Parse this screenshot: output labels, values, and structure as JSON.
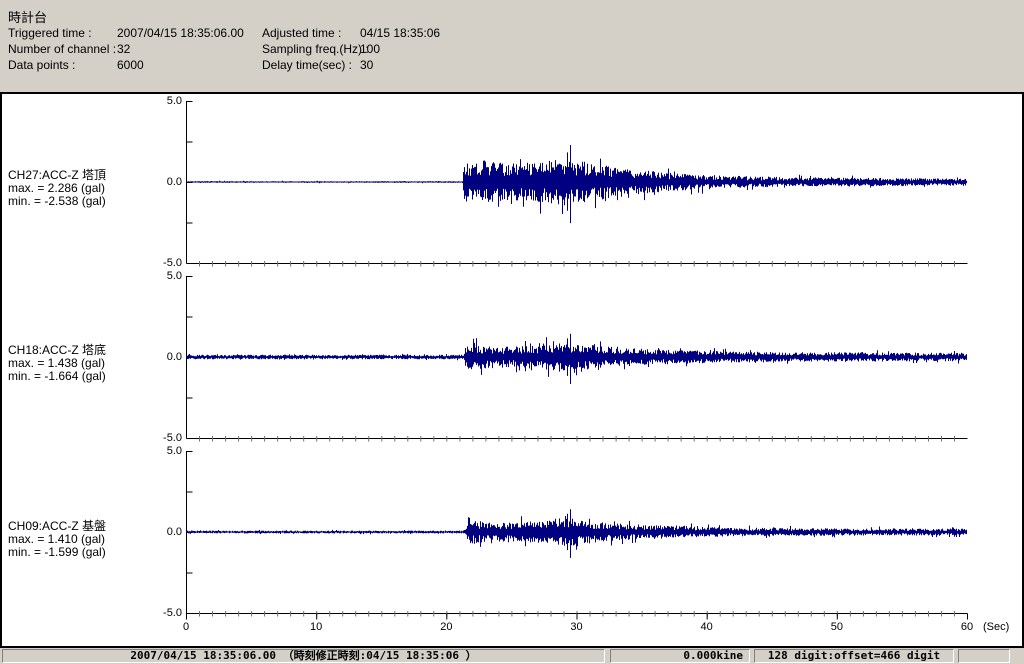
{
  "header": {
    "title": "時計台",
    "fields": [
      {
        "label": "Triggered time :",
        "value": "2007/04/15 18:35:06.00"
      },
      {
        "label": "Adjusted time :",
        "value": "04/15 18:35:06"
      },
      {
        "label": "Number of channel :",
        "value": "32"
      },
      {
        "label": "Sampling freq.(Hz) :",
        "value": "100"
      },
      {
        "label": "Data points :",
        "value": "6000"
      },
      {
        "label": "Delay time(sec) :",
        "value": "30"
      }
    ]
  },
  "status_bar": {
    "timestamp": "2007/04/15 18:35:06.00  （時刻修正時刻:04/15 18:35:06  ）",
    "kine": "0.000kine",
    "digit": "128 digit:offset=466 digit"
  },
  "chart_data": {
    "type": "line",
    "title": "Triggered seismic acceleration waveforms, 3 channels",
    "xlabel": "(Sec)",
    "ylabel": "gal",
    "x_axis": {
      "min": 0,
      "max": 60,
      "major_tick": 10,
      "minor_tick": 1,
      "tick_labels": [
        "0",
        "10",
        "20",
        "30",
        "40",
        "50",
        "60"
      ],
      "label": "(Sec)"
    },
    "y_axis": {
      "min": -5.0,
      "max": 5.0,
      "tick_labels": [
        "5.0",
        "0.0",
        "-5.0"
      ],
      "unit": "gal"
    },
    "grid": false,
    "colors": {
      "trace": "#000080",
      "axis": "#000000",
      "minor_tick": "#707070"
    },
    "event": {
      "onset_sec": 21.3,
      "peak_sec": 29.5
    },
    "channels": [
      {
        "id": "CH27",
        "label": "CH27:ACC-Z 塔頂",
        "max_label": "max. = 2.286 (gal)",
        "min_label": "min. = -2.538 (gal)",
        "max": 2.286,
        "min": -2.538,
        "envelope": [
          [
            0,
            0.05
          ],
          [
            21.2,
            0.05
          ],
          [
            21.35,
            1.2
          ],
          [
            23,
            1.35
          ],
          [
            25,
            1.15
          ],
          [
            27,
            1.25
          ],
          [
            29,
            1.45
          ],
          [
            30,
            1.35
          ],
          [
            31.5,
            1.15
          ],
          [
            33,
            0.95
          ],
          [
            35,
            0.75
          ],
          [
            37,
            0.6
          ],
          [
            40,
            0.45
          ],
          [
            44,
            0.33
          ],
          [
            50,
            0.27
          ],
          [
            60,
            0.22
          ]
        ]
      },
      {
        "id": "CH18",
        "label": "CH18:ACC-Z 塔底",
        "max_label": "max. = 1.438 (gal)",
        "min_label": "min. = -1.664 (gal)",
        "max": 1.438,
        "min": -1.664,
        "envelope": [
          [
            0,
            0.14
          ],
          [
            21.3,
            0.14
          ],
          [
            21.5,
            0.8
          ],
          [
            23,
            0.7
          ],
          [
            25,
            0.65
          ],
          [
            27,
            0.75
          ],
          [
            29,
            0.95
          ],
          [
            30,
            0.85
          ],
          [
            31.5,
            0.7
          ],
          [
            33,
            0.6
          ],
          [
            35,
            0.52
          ],
          [
            38,
            0.42
          ],
          [
            42,
            0.34
          ],
          [
            47,
            0.3
          ],
          [
            60,
            0.26
          ]
        ]
      },
      {
        "id": "CH09",
        "label": "CH09:ACC-Z 基盤",
        "max_label": "max. = 1.410 (gal)",
        "min_label": "min. = -1.599 (gal)",
        "max": 1.41,
        "min": -1.599,
        "envelope": [
          [
            0,
            0.09
          ],
          [
            21.4,
            0.09
          ],
          [
            21.6,
            0.75
          ],
          [
            23,
            0.62
          ],
          [
            25,
            0.58
          ],
          [
            27,
            0.7
          ],
          [
            29,
            0.9
          ],
          [
            30,
            0.8
          ],
          [
            31.5,
            0.65
          ],
          [
            33,
            0.55
          ],
          [
            35,
            0.45
          ],
          [
            38,
            0.36
          ],
          [
            42,
            0.28
          ],
          [
            47,
            0.24
          ],
          [
            60,
            0.21
          ]
        ]
      }
    ]
  }
}
